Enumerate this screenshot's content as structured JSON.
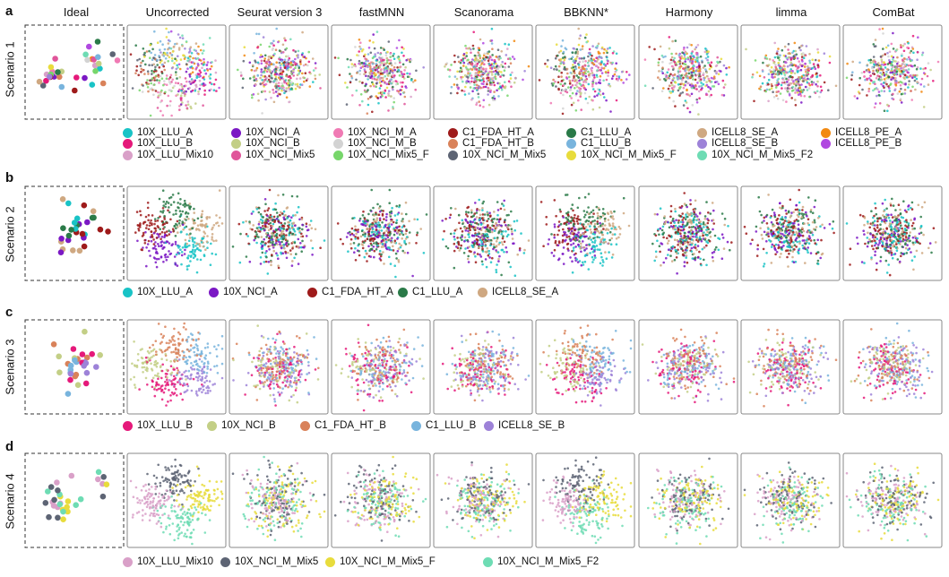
{
  "columns": [
    "Ideal",
    "Uncorrected",
    "Seurat version 3",
    "fastMNN",
    "Scanorama",
    "BBKNN*",
    "Harmony",
    "limma",
    "ComBat"
  ],
  "scenarios": [
    {
      "letter": "a",
      "label": "Scenario 1",
      "legend": [
        {
          "name": "10X_LLU_A",
          "color": "#19c3c6"
        },
        {
          "name": "10X_LLU_B",
          "color": "#e5197a"
        },
        {
          "name": "10X_LLU_Mix10",
          "color": "#d9a0c8"
        },
        {
          "name": "10X_NCI_A",
          "color": "#7b18c4"
        },
        {
          "name": "10X_NCI_B",
          "color": "#c3cf86"
        },
        {
          "name": "10X_NCI_Mix5",
          "color": "#e0559a"
        },
        {
          "name": "10X_NCI_M_A",
          "color": "#f07ab4"
        },
        {
          "name": "10X_NCI_M_B",
          "color": "#d3d3d3"
        },
        {
          "name": "10X_NCI_Mix5_F",
          "color": "#77d66b"
        },
        {
          "name": "C1_FDA_HT_A",
          "color": "#9e1a1a"
        },
        {
          "name": "C1_FDA_HT_B",
          "color": "#d9825a"
        },
        {
          "name": "10X_NCI_M_Mix5",
          "color": "#5d6474"
        },
        {
          "name": "C1_LLU_A",
          "color": "#2a7a48"
        },
        {
          "name": "C1_LLU_B",
          "color": "#78b4dd"
        },
        {
          "name": "10X_NCI_M_Mix5_F",
          "color": "#e8dc3c"
        },
        {
          "name": "ICELL8_SE_A",
          "color": "#cfa881"
        },
        {
          "name": "ICELL8_SE_B",
          "color": "#9d82d8"
        },
        {
          "name": "10X_NCI_M_Mix5_F2",
          "color": "#6edcb4"
        },
        {
          "name": "ICELL8_PE_A",
          "color": "#f28a12"
        },
        {
          "name": "ICELL8_PE_B",
          "color": "#b048e0"
        }
      ]
    },
    {
      "letter": "b",
      "label": "Scenario 2",
      "legend": [
        {
          "name": "10X_LLU_A",
          "color": "#19c3c6"
        },
        {
          "name": "10X_NCI_A",
          "color": "#7b18c4"
        },
        {
          "name": "C1_FDA_HT_A",
          "color": "#9e1a1a"
        },
        {
          "name": "C1_LLU_A",
          "color": "#2a7a48"
        },
        {
          "name": "ICELL8_SE_A",
          "color": "#cfa881"
        }
      ]
    },
    {
      "letter": "c",
      "label": "Scenario 3",
      "legend": [
        {
          "name": "10X_LLU_B",
          "color": "#e5197a"
        },
        {
          "name": "10X_NCI_B",
          "color": "#c3cf86"
        },
        {
          "name": "C1_FDA_HT_B",
          "color": "#d9825a"
        },
        {
          "name": "C1_LLU_B",
          "color": "#78b4dd"
        },
        {
          "name": "ICELL8_SE_B",
          "color": "#9d82d8"
        }
      ]
    },
    {
      "letter": "d",
      "label": "Scenario 4",
      "legend": [
        {
          "name": "10X_LLU_Mix10",
          "color": "#d9a0c8"
        },
        {
          "name": "10X_NCI_M_Mix5",
          "color": "#5d6474"
        },
        {
          "name": "10X_NCI_M_Mix5_F",
          "color": "#e8dc3c"
        },
        {
          "name": "10X_NCI_M_Mix5_F2",
          "color": "#6edcb4"
        }
      ]
    }
  ]
}
